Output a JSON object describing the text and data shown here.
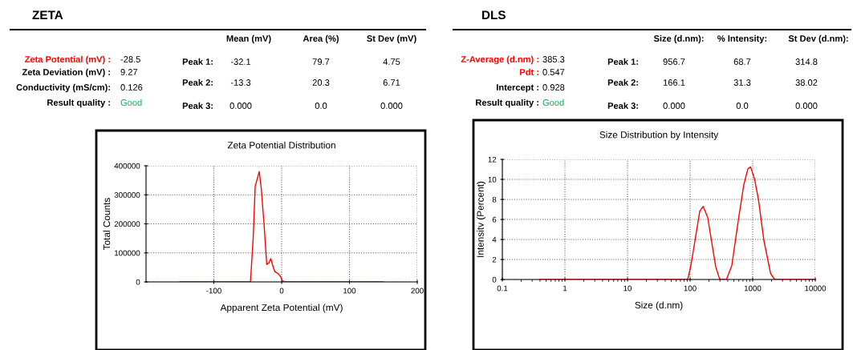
{
  "chart_data": [
    {
      "type": "other",
      "title": "ZETA",
      "annotations": [
        "Zeta Potential (mV) :",
        "-28.5",
        "Zeta Deviation (mV) :",
        "9.27",
        "Conductivity (mS/cm):",
        "0.126",
        "Result quality :",
        "Good",
        "Mean (mV)",
        "Area (%)",
        "St Dev (mV)",
        "Peak 1:",
        "-32.1",
        "79.7",
        "4.75",
        "Peak 2:",
        "-13.3",
        "20.3",
        "6.71",
        "Peak 3:",
        "0.000",
        "0.0",
        "0.000"
      ],
      "colors": [
        "#ff0000",
        "#000000",
        "#000000",
        "#000000",
        "#000000",
        "#000000",
        "#000000",
        "#00b050",
        "#000000",
        "#000000",
        "#000000",
        "#000000",
        "#000000",
        "#000000",
        "#000000",
        "#000000",
        "#000000",
        "#000000",
        "#000000",
        "#000000",
        "#000000",
        "#000000",
        "#000000"
      ]
    },
    {
      "type": "line",
      "title": "Zeta Potential Distribution",
      "xlabel": "Apparent Zeta Potential (mV)",
      "ylabel": "Total Counts",
      "x": [
        -150,
        -46,
        -42,
        -39,
        -33,
        -30,
        -26,
        -22,
        -19,
        -16,
        -13,
        -10,
        -6,
        -2,
        1,
        3,
        150
      ],
      "series": [
        {
          "color": "#ff0000",
          "values": [
            0,
            0,
            150000,
            330000,
            380000,
            320000,
            200000,
            60000,
            65000,
            80000,
            55000,
            35000,
            30000,
            20000,
            5000,
            0,
            0
          ]
        }
      ],
      "xlim": [
        -200,
        200
      ],
      "xticks": [
        -100,
        0,
        100,
        200
      ],
      "ylim": [
        0,
        400000
      ],
      "yticks": [
        0,
        100000,
        200000,
        300000,
        400000
      ],
      "grid": true,
      "legend": false,
      "marker": "none",
      "line_style": "solid"
    },
    {
      "type": "other",
      "title": "DLS",
      "annotations": [
        "Z-Average (d.nm) :",
        "385.3",
        "Pdt :",
        "0.547",
        "Intercept :",
        "0.928",
        "Result quality :",
        "Good",
        "Size (d.nm):",
        "% Intensity:",
        "St Dev (d.nm):",
        "Peak 1:",
        "956.7",
        "68.7",
        "314.8",
        "Peak 2:",
        "166.1",
        "31.3",
        "38.02",
        "Peak 3:",
        "0.000",
        "0.0",
        "0.000"
      ],
      "colors": [
        "#ff0000",
        "#000000",
        "#ff0000",
        "#000000",
        "#000000",
        "#000000",
        "#000000",
        "#00b050",
        "#000000",
        "#000000",
        "#000000",
        "#000000",
        "#000000",
        "#000000",
        "#000000",
        "#000000",
        "#000000",
        "#000000",
        "#000000",
        "#000000",
        "#000000",
        "#000000",
        "#000000"
      ]
    },
    {
      "type": "line",
      "title": "Size Distribution by Intensity",
      "xlabel": "Size (d.nm)",
      "ylabel": "Intensitv (Percent)",
      "x": [
        0.4,
        91.6,
        103,
        143,
        162,
        191,
        257,
        298,
        381,
        464,
        594,
        723,
        838,
        924,
        1071,
        1242,
        1510,
        1932,
        2240,
        10000
      ],
      "series": [
        {
          "color": "#ff0000",
          "values": [
            0,
            0,
            1.4,
            6.85,
            7.3,
            6.2,
            1.25,
            0,
            0,
            1.4,
            6.05,
            9.5,
            11.05,
            11.25,
            10.05,
            7.9,
            3.9,
            0.6,
            0,
            0
          ]
        }
      ],
      "log": "x",
      "xlim": [
        0.1,
        10000
      ],
      "xticks": [
        0.1,
        1,
        10,
        100,
        1000,
        10000
      ],
      "ylim": [
        0,
        12
      ],
      "yticks": [
        0,
        2,
        4,
        6,
        8,
        10,
        12
      ],
      "grid": true,
      "legend": false,
      "marker": "none",
      "line_style": "solid"
    }
  ]
}
